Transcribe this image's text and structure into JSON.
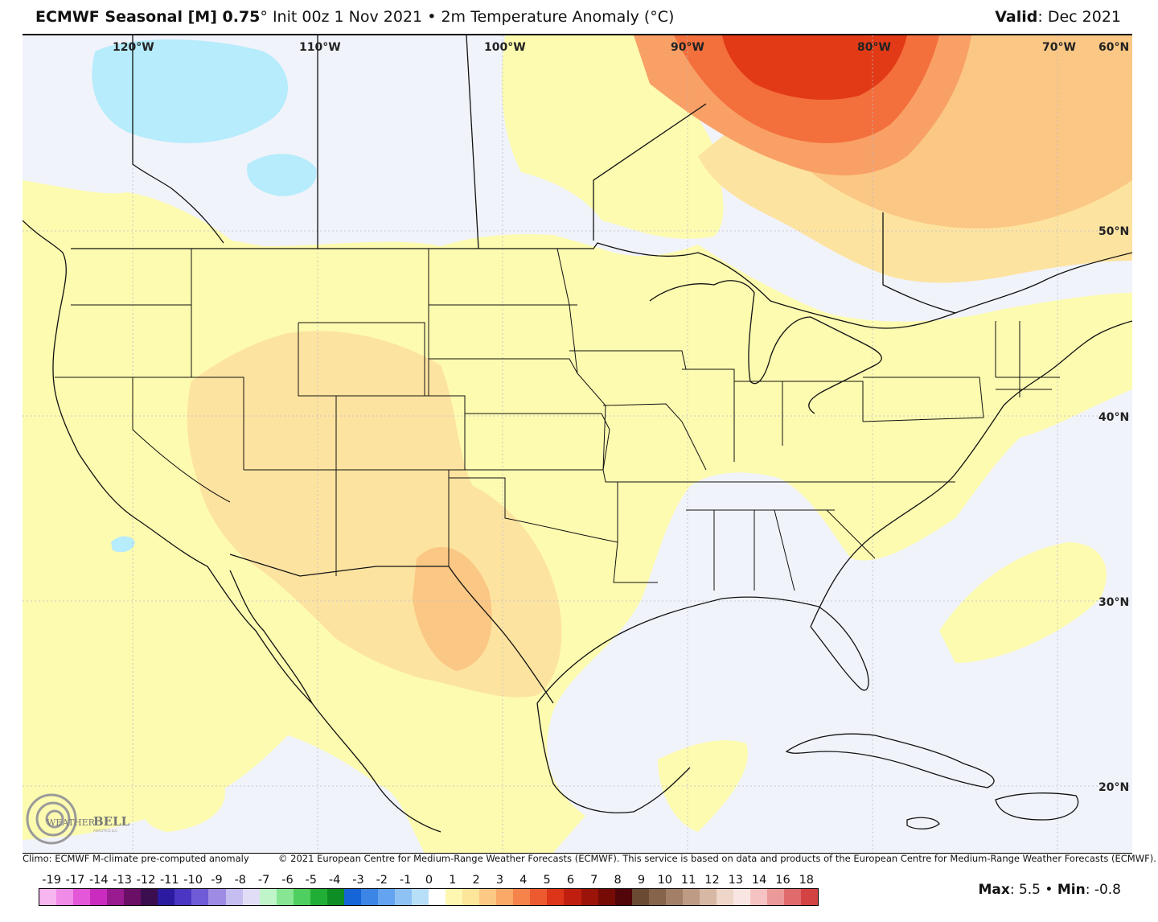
{
  "header": {
    "model": "ECMWF Seasonal [M] 0.75",
    "degree_sign": "°",
    "init": "Init 00z 1 Nov 2021",
    "bullet": "•",
    "variable": "2m Temperature Anomaly (°C)",
    "valid_label": "Valid",
    "valid_value": ": Dec 2021"
  },
  "map": {
    "lon_labels": [
      "120°W",
      "110°W",
      "100°W",
      "90°W",
      "80°W",
      "70°W",
      "60°N"
    ],
    "lat_labels": [
      "50°N",
      "40°N",
      "30°N",
      "20°N"
    ],
    "colors": {
      "background": "#f1f3fb",
      "anomaly_0_1": "#fdfbb0",
      "anomaly_1_2": "#fde3a0",
      "anomaly_2_3": "#fbc784",
      "anomaly_3_4": "#f9a066",
      "anomaly_4_5": "#f36f3c",
      "anomaly_5_6": "#e23a16",
      "anomaly_neg_1": "#b6ecfb",
      "border": "#111111"
    }
  },
  "logo": {
    "text_weather": "WEATHER",
    "text_bell": "BELL",
    "text_sub": "ANALYTICS LLC"
  },
  "credits": {
    "climo": "Climo: ECMWF M-climate pre-computed anomaly",
    "copyright": "© 2021 European Centre for Medium-Range Weather Forecasts (ECMWF). This service is based on data and products of the European Centre for Medium-Range Weather Forecasts (ECMWF)."
  },
  "colorbar": {
    "labels": [
      "-19",
      "-17",
      "-14",
      "-13",
      "-12",
      "-11",
      "-10",
      "-9",
      "-8",
      "-7",
      "-6",
      "-5",
      "-4",
      "-3",
      "-2",
      "-1",
      "0",
      "1",
      "2",
      "3",
      "4",
      "5",
      "6",
      "7",
      "8",
      "9",
      "10",
      "11",
      "12",
      "13",
      "14",
      "16",
      "18"
    ],
    "colors": [
      "#f7b6f0",
      "#f08be8",
      "#e457d8",
      "#c92cbf",
      "#9a1a90",
      "#6b0f66",
      "#3b0e4f",
      "#2a1ba0",
      "#4a36c2",
      "#6f5bd6",
      "#9e8ce4",
      "#c6bdf0",
      "#e2ddf6",
      "#bff5c8",
      "#86e693",
      "#4fcf5f",
      "#21ae36",
      "#0e8d24",
      "#1565d8",
      "#3a85e6",
      "#63a3ef",
      "#8fc2f4",
      "#b8dff8",
      "#ffffff",
      "#fdf7b2",
      "#fde59a",
      "#fcc985",
      "#faa967",
      "#f5834a",
      "#ee5a2f",
      "#dd3519",
      "#c01f10",
      "#9b1309",
      "#760b06",
      "#52060a",
      "#6b4a33",
      "#86634b",
      "#a27f66",
      "#bd9b84",
      "#d7b8a5",
      "#eed6c9",
      "#f9e6e2",
      "#f4c3c2",
      "#ec9a99",
      "#e06b6c",
      "#d44343"
    ]
  },
  "stats": {
    "max_label": "Max",
    "max_value": ": 5.5",
    "sep": "•",
    "min_label": "Min",
    "min_value": ": -0.8"
  }
}
